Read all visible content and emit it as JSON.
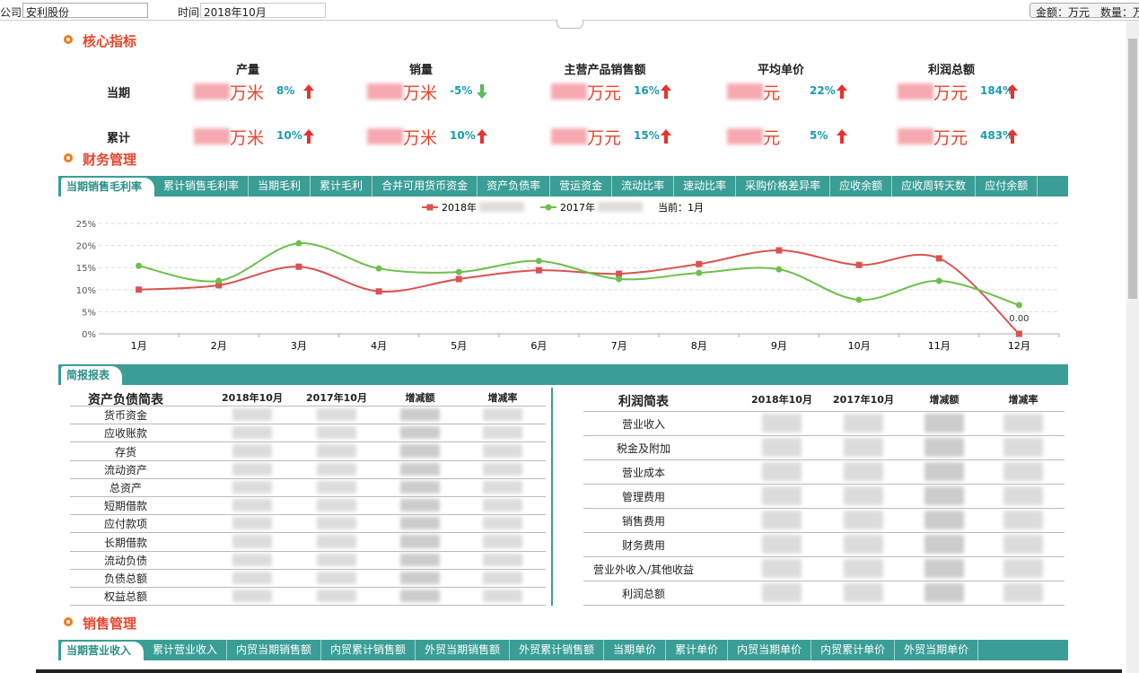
{
  "toolbar": {
    "company_label": "公司",
    "company": "安利股份",
    "time_label": "时间",
    "time": "2018年10月",
    "units": "金额：万元　数量：万"
  },
  "core": {
    "title": "核心指标",
    "columns": [
      "产量",
      "销量",
      "主营产品销售额",
      "平均单价",
      "利润总额"
    ],
    "rows": [
      {
        "label": "当期",
        "cells": [
          {
            "unit": "万米",
            "change": "8%",
            "trend": "up"
          },
          {
            "unit": "万米",
            "change": "-5%",
            "trend": "down"
          },
          {
            "unit": "万元",
            "change": "16%",
            "trend": "up"
          },
          {
            "unit": "元",
            "change": "22%",
            "trend": "up"
          },
          {
            "unit": "万元",
            "change": "184%",
            "trend": "up"
          }
        ]
      },
      {
        "label": "累计",
        "cells": [
          {
            "unit": "万米",
            "change": "10%",
            "trend": "up"
          },
          {
            "unit": "万米",
            "change": "10%",
            "trend": "up"
          },
          {
            "unit": "万元",
            "change": "15%",
            "trend": "up"
          },
          {
            "unit": "元",
            "change": "5%",
            "trend": "up"
          },
          {
            "unit": "万元",
            "change": "483%",
            "trend": "up"
          }
        ]
      }
    ]
  },
  "finance": {
    "title": "财务管理",
    "tabs": [
      "当期销售毛利率",
      "累计销售毛利率",
      "当期毛利",
      "累计毛利",
      "合并可用货币资金",
      "资产负债率",
      "营运资金",
      "流动比率",
      "速动比率",
      "采购价格差异率",
      "应收余额",
      "应收周转天数",
      "应付余额"
    ],
    "active_tab": 0
  },
  "chart_data": {
    "type": "line",
    "smooth": true,
    "grid": true,
    "current": "当前：1月",
    "categories": [
      "1月",
      "2月",
      "3月",
      "4月",
      "5月",
      "6月",
      "7月",
      "8月",
      "9月",
      "10月",
      "11月",
      "12月"
    ],
    "series": [
      {
        "name": "2018年",
        "color": "#d9534f",
        "marker": "square",
        "values": [
          10,
          11,
          15.2,
          9.6,
          12.4,
          14.4,
          13.6,
          15.8,
          18.9,
          15.6,
          17.1,
          0
        ],
        "value_labels": [
          null,
          null,
          null,
          null,
          null,
          null,
          null,
          null,
          null,
          null,
          null,
          "0.00"
        ]
      },
      {
        "name": "2017年",
        "color": "#6cc04a",
        "marker": "circle",
        "values": [
          15.4,
          12,
          20.5,
          14.8,
          14,
          16.5,
          12.4,
          13.8,
          14.6,
          7.7,
          12,
          6.5
        ]
      }
    ],
    "ylim": [
      0,
      25
    ],
    "yticks": [
      {
        "value": 0,
        "label": "0%"
      },
      {
        "value": 5,
        "label": "5%"
      },
      {
        "value": 10,
        "label": "10%"
      },
      {
        "value": 15,
        "label": "15%"
      },
      {
        "value": 20,
        "label": "20%"
      },
      {
        "value": 25,
        "label": "25%"
      }
    ]
  },
  "brief": {
    "title": "简报报表",
    "balance": {
      "header": [
        "资产负债简表",
        "2018年10月",
        "2017年10月",
        "增减额",
        "增减率"
      ],
      "rows": [
        "货币资金",
        "应收账款",
        "存货",
        "流动资产",
        "总资产",
        "短期借款",
        "应付款项",
        "长期借款",
        "流动负债",
        "负债总额",
        "权益总额"
      ]
    },
    "profit": {
      "header": [
        "利润简表",
        "2018年10月",
        "2017年10月",
        "增减额",
        "增减率"
      ],
      "rows": [
        "营业收入",
        "税金及附加",
        "营业成本",
        "管理费用",
        "销售费用",
        "财务费用",
        "营业外收入/其他收益",
        "利润总额"
      ]
    }
  },
  "sales": {
    "title": "销售管理",
    "tabs": [
      "当期营业收入",
      "累计营业收入",
      "内贸当期销售额",
      "内贸累计销售额",
      "外贸当期销售额",
      "外贸累计销售额",
      "当期单价",
      "累计单价",
      "内贸当期单价",
      "内贸累计单价",
      "外贸当期单价"
    ],
    "active_tab": 0
  }
}
